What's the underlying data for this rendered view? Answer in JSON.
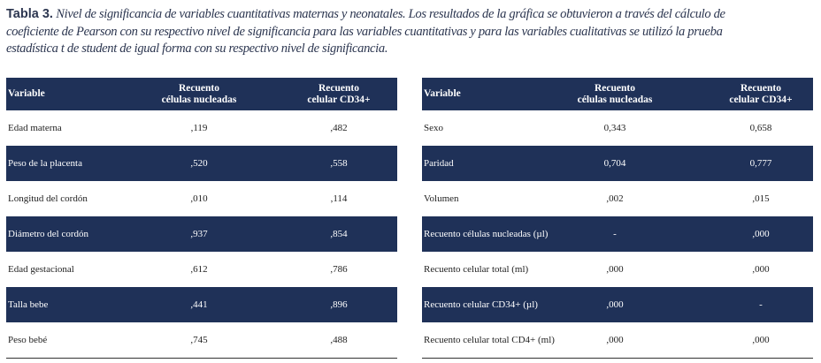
{
  "caption": {
    "label": "Tabla 3.",
    "lines": [
      "Nivel de significancia de variables cuantitativas maternas y neonatales. Los resultados de la gráfica se obtuvieron a través del cálculo de",
      "coeficiente de Pearson con su respectivo nivel de significancia para las variables cuantitativas y para las variables cualitativas se utilizó la prueba",
      "estadística t de student de igual forma con su respectivo nivel de significancia."
    ]
  },
  "tables": [
    {
      "headers": [
        "Variable",
        "Recuento\ncélulas nucleadas",
        "Recuento\ncelular CD34+"
      ],
      "rows": [
        [
          "Edad materna",
          ",119",
          ",482"
        ],
        [
          "Peso de la placenta",
          ",520",
          ",558"
        ],
        [
          "Longitud del cordón",
          ",010",
          ",114"
        ],
        [
          "Diámetro del cordón",
          ",937",
          ",854"
        ],
        [
          "Edad gestacional",
          ",612",
          ",786"
        ],
        [
          "Talla bebe",
          ",441",
          ",896"
        ],
        [
          "Peso bebé",
          ",745",
          ",488"
        ]
      ]
    },
    {
      "headers": [
        "Variable",
        "Recuento\ncélulas nucleadas",
        "Recuento\ncelular CD34+"
      ],
      "rows": [
        [
          "Sexo",
          "0,343",
          "0,658"
        ],
        [
          "Paridad",
          "0,704",
          "0,777"
        ],
        [
          "Volumen",
          ",002",
          ",015"
        ],
        [
          "Recuento células nucleadas (µl)",
          "-",
          ",000"
        ],
        [
          "Recuento celular total (ml)",
          ",000",
          ",000"
        ],
        [
          "Recuento celular CD34+ (µl)",
          ",000",
          "-"
        ],
        [
          "Recuento celular total CD4+ (ml)",
          ",000",
          ",000"
        ]
      ]
    }
  ]
}
